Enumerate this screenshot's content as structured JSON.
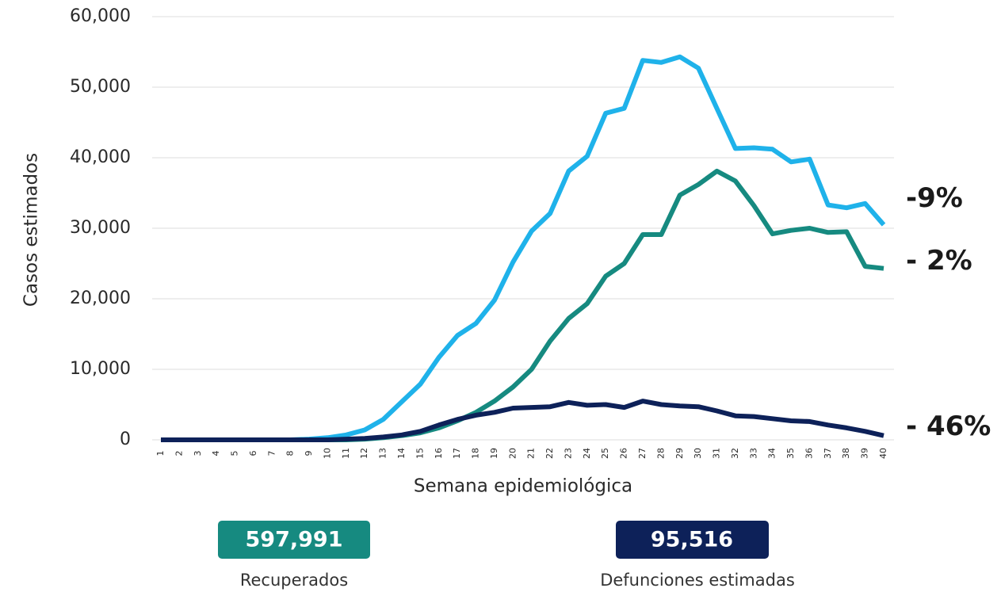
{
  "chart_data": {
    "type": "line",
    "y_label": "Casos estimados",
    "x_label": "Semana epidemiológica",
    "x": [
      1,
      2,
      3,
      4,
      5,
      6,
      7,
      8,
      9,
      10,
      11,
      12,
      13,
      14,
      15,
      16,
      17,
      18,
      19,
      20,
      21,
      22,
      23,
      24,
      25,
      26,
      27,
      28,
      29,
      30,
      31,
      32,
      33,
      34,
      35,
      36,
      37,
      38,
      39,
      40
    ],
    "xlim": [
      1,
      40
    ],
    "ylim": [
      0,
      60000
    ],
    "yticks": [
      0,
      {
        "value": 10000,
        "label": "10,000"
      },
      {
        "value": 20000,
        "label": "20,000"
      },
      {
        "value": 30000,
        "label": "30,000"
      },
      {
        "value": 40000,
        "label": "40,000"
      },
      {
        "value": 50000,
        "label": "50,000"
      },
      {
        "value": 60000,
        "label": "60,000"
      }
    ],
    "grid": true,
    "series": [
      {
        "color": "#1fb2ea",
        "end_label": "-9%",
        "values": [
          0,
          0,
          0,
          0,
          0,
          0,
          0,
          0,
          100,
          300,
          700,
          1400,
          2900,
          5400,
          7900,
          11700,
          14800,
          16500,
          19800,
          25200,
          29600,
          32100,
          38100,
          40200,
          46300,
          47000,
          53800,
          53500,
          54300,
          52700,
          47000,
          41300,
          41400,
          41200,
          39400,
          39800,
          33300,
          32900,
          33500,
          30500
        ]
      },
      {
        "color": "#168a80",
        "end_label": "- 2%",
        "values": [
          0,
          0,
          0,
          0,
          0,
          0,
          0,
          0,
          0,
          0,
          0,
          100,
          300,
          600,
          1000,
          1700,
          2700,
          3900,
          5500,
          7500,
          10000,
          14000,
          17200,
          19300,
          23200,
          25000,
          29100,
          29100,
          34700,
          36200,
          38100,
          36700,
          33200,
          29200,
          29700,
          30000,
          29400,
          29500,
          24600,
          24300
        ]
      },
      {
        "color": "#0d2159",
        "end_label": "- 46%",
        "values": [
          0,
          0,
          0,
          0,
          0,
          0,
          0,
          0,
          0,
          0,
          100,
          200,
          400,
          700,
          1200,
          2100,
          2900,
          3500,
          3900,
          4500,
          4600,
          4700,
          5300,
          4900,
          5000,
          4600,
          5500,
          5000,
          4800,
          4700,
          4100,
          3400,
          3300,
          3000,
          2700,
          2600,
          2100,
          1700,
          1200,
          600
        ]
      }
    ]
  },
  "summary": [
    {
      "value": "597,991",
      "label": "Recuperados"
    },
    {
      "value": "95,516",
      "label": "Defunciones estimadas"
    }
  ]
}
